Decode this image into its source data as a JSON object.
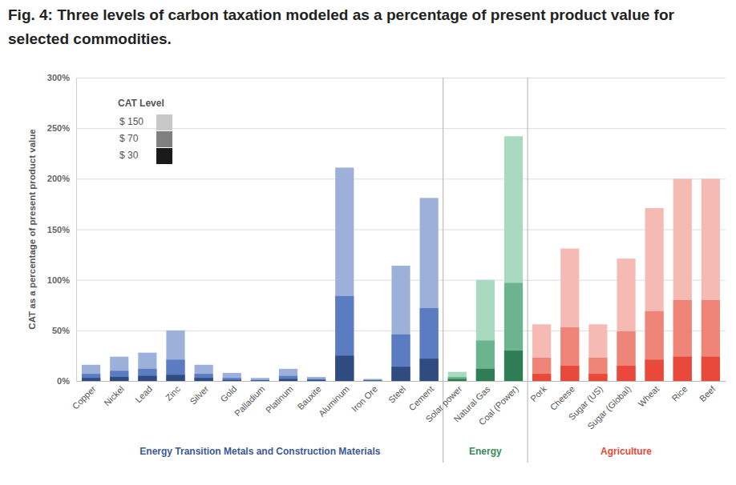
{
  "chart_data": {
    "type": "bar",
    "title": "Fig. 4: Three levels of carbon taxation modeled as a percentage of present product value for selected commodities.",
    "y_label": "CAT as a percentage of present product value",
    "legend_title": "CAT Level",
    "legend": "top-left",
    "grid": true,
    "groups": [
      {
        "name": "Energy Transition Metals and Construction Materials",
        "color": "#3b5a9a",
        "colors": [
          "#9db0da",
          "#5b7cc0",
          "#2f4b80"
        ],
        "categories": [
          "Copper",
          "Nickel",
          "Lead",
          "Zinc",
          "Silver",
          "Gold",
          "Palladium",
          "Platinum",
          "Bauxite",
          "Aluminum",
          "Iron Ore",
          "Steel",
          "Cement"
        ]
      },
      {
        "name": "Energy",
        "color": "#3a8a5c",
        "colors": [
          "#a9d9c0",
          "#6bb48f",
          "#2e7d55"
        ],
        "categories": [
          "Solar power",
          "Natural Gas",
          "Coal (Power)"
        ]
      },
      {
        "name": "Agriculture",
        "color": "#e8493a",
        "colors": [
          "#f6bab4",
          "#ef8578",
          "#e8493a"
        ],
        "categories": [
          "Pork",
          "Cheese",
          "Sugar (US)",
          "Sugar (Global)",
          "Wheat",
          "Rice",
          "Beef"
        ]
      }
    ],
    "series": [
      {
        "name": "$ 150",
        "color": "#c8c8c8",
        "values": [
          16,
          24,
          28,
          50,
          16,
          8,
          3,
          12,
          4,
          211,
          2,
          114,
          181,
          9,
          100,
          242,
          56,
          131,
          56,
          121,
          171,
          200,
          200
        ]
      },
      {
        "name": "$ 70",
        "color": "#808080",
        "values": [
          7,
          10,
          12,
          21,
          7,
          3,
          1,
          5,
          2,
          84,
          1,
          46,
          72,
          4,
          40,
          97,
          23,
          53,
          23,
          49,
          69,
          80,
          80
        ]
      },
      {
        "name": "$ 30",
        "color": "#1a1a1a",
        "values": [
          3,
          4,
          5,
          6,
          3,
          1,
          0.5,
          2,
          1,
          25,
          0.4,
          14,
          22,
          2,
          12,
          30,
          7,
          15,
          7,
          15,
          21,
          24,
          24
        ]
      }
    ],
    "ylim": [
      0,
      300
    ],
    "yticks": [
      {
        "value": 0,
        "label": "0%"
      },
      {
        "value": 50,
        "label": "50%"
      },
      {
        "value": 100,
        "label": "100%"
      },
      {
        "value": 150,
        "label": "150%"
      },
      {
        "value": 200,
        "label": "200%"
      },
      {
        "value": 250,
        "label": "250%"
      },
      {
        "value": 300,
        "label": "300%"
      }
    ]
  }
}
